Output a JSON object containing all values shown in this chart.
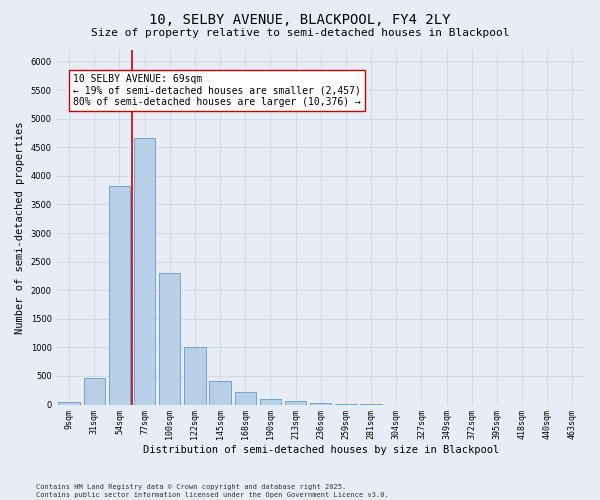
{
  "title1": "10, SELBY AVENUE, BLACKPOOL, FY4 2LY",
  "title2": "Size of property relative to semi-detached houses in Blackpool",
  "xlabel": "Distribution of semi-detached houses by size in Blackpool",
  "ylabel": "Number of semi-detached properties",
  "categories": [
    "9sqm",
    "31sqm",
    "54sqm",
    "77sqm",
    "100sqm",
    "122sqm",
    "145sqm",
    "168sqm",
    "190sqm",
    "213sqm",
    "236sqm",
    "259sqm",
    "281sqm",
    "304sqm",
    "327sqm",
    "349sqm",
    "372sqm",
    "395sqm",
    "418sqm",
    "440sqm",
    "463sqm"
  ],
  "values": [
    50,
    460,
    3820,
    4660,
    2300,
    1000,
    410,
    220,
    100,
    60,
    30,
    5,
    2,
    0,
    0,
    0,
    0,
    0,
    0,
    0,
    0
  ],
  "bar_color": "#b8cfe8",
  "bar_edge_color": "#6699cc",
  "grid_color": "#c8d4e3",
  "background_color": "#e8edf5",
  "vline_color": "#cc0000",
  "vline_pos": 2.5,
  "annotation_text": "10 SELBY AVENUE: 69sqm\n← 19% of semi-detached houses are smaller (2,457)\n80% of semi-detached houses are larger (10,376) →",
  "annotation_box_color": "#ffffff",
  "annotation_box_edge": "#cc0000",
  "ylim": [
    0,
    6200
  ],
  "yticks": [
    0,
    500,
    1000,
    1500,
    2000,
    2500,
    3000,
    3500,
    4000,
    4500,
    5000,
    5500,
    6000
  ],
  "footer": "Contains HM Land Registry data © Crown copyright and database right 2025.\nContains public sector information licensed under the Open Government Licence v3.0.",
  "title_fontsize": 10,
  "subtitle_fontsize": 8,
  "tick_fontsize": 6,
  "ylabel_fontsize": 7.5,
  "xlabel_fontsize": 7.5,
  "annotation_fontsize": 7,
  "footer_fontsize": 5
}
